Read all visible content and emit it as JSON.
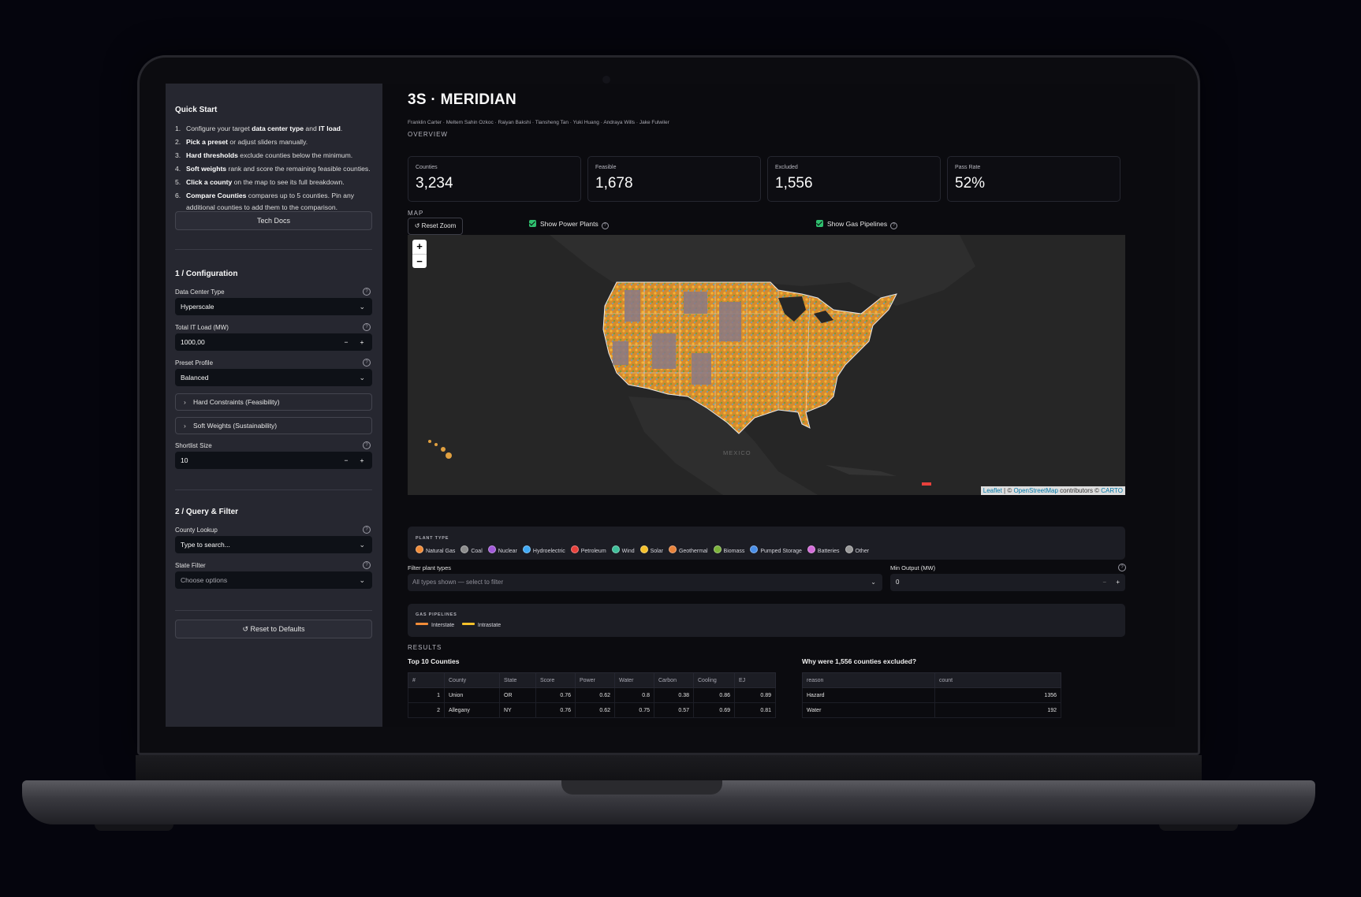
{
  "sidebar": {
    "quick_start": {
      "heading": "Quick Start",
      "steps": [
        {
          "n": "1.",
          "pre": "Configure your target ",
          "b1": "data center type",
          "mid": " and ",
          "b2": "IT load",
          "post": "."
        },
        {
          "n": "2.",
          "pre": "",
          "b1": "Pick a preset",
          "mid": " or adjust sliders manually.",
          "b2": "",
          "post": ""
        },
        {
          "n": "3.",
          "pre": "",
          "b1": "Hard thresholds",
          "mid": " exclude counties below the minimum.",
          "b2": "",
          "post": ""
        },
        {
          "n": "4.",
          "pre": "",
          "b1": "Soft weights",
          "mid": " rank and score the remaining feasible counties.",
          "b2": "",
          "post": ""
        },
        {
          "n": "5.",
          "pre": "",
          "b1": "Click a county",
          "mid": " on the map to see its full breakdown.",
          "b2": "",
          "post": ""
        },
        {
          "n": "6.",
          "pre": "",
          "b1": "Compare Counties",
          "mid": " compares up to 5 counties. Pin any additional counties to add them to the comparison.",
          "b2": "",
          "post": ""
        }
      ],
      "tech_docs": "Tech Docs"
    },
    "config": {
      "heading": "1 / Configuration",
      "dc_type_label": "Data Center Type",
      "dc_type_value": "Hyperscale",
      "it_load_label": "Total IT Load (MW)",
      "it_load_value": "1000,00",
      "preset_label": "Preset Profile",
      "preset_value": "Balanced",
      "hard_constraints": "Hard Constraints (Feasibility)",
      "soft_weights": "Soft Weights (Sustainability)",
      "shortlist_label": "Shortlist Size",
      "shortlist_value": "10"
    },
    "query": {
      "heading": "2 / Query & Filter",
      "county_label": "County Lookup",
      "county_placeholder": "Type to search...",
      "state_label": "State Filter",
      "state_placeholder": "Choose options"
    },
    "reset": "↺ Reset to Defaults",
    "minus": "−",
    "plus": "+",
    "chevron": "⌄",
    "help": "?",
    "arrow": "›"
  },
  "main": {
    "title": "3S · MERIDIAN",
    "authors": "Franklin Carter · Meltem Sahin Ozkoc · Raiyan Bakshi · Tiansheng Tan · Yuki Huang · Andraya Wills · Jake Fulwiler",
    "overview_label": "OVERVIEW",
    "cards": [
      {
        "label": "Counties",
        "value": "3,234"
      },
      {
        "label": "Feasible",
        "value": "1,678"
      },
      {
        "label": "Excluded",
        "value": "1,556"
      },
      {
        "label": "Pass Rate",
        "value": "52%"
      }
    ],
    "map_label": "MAP",
    "reset_zoom": "↺ Reset Zoom",
    "show_power_plants": "Show Power Plants",
    "show_gas_pipelines": "Show Gas Pipelines",
    "map": {
      "zoom_in": "+",
      "zoom_out": "−",
      "mexico": "MEXICO",
      "attr_leaflet": "Leaflet",
      "attr_sep": " | © ",
      "attr_osm": "OpenStreetMap",
      "attr_contrib": " contributors © ",
      "attr_carto": "CARTO"
    },
    "plant_legend": {
      "title": "PLANT TYPE",
      "items": [
        {
          "label": "Natural Gas",
          "color": "#f28c38"
        },
        {
          "label": "Coal",
          "color": "#8c8c8c"
        },
        {
          "label": "Nuclear",
          "color": "#a259d9"
        },
        {
          "label": "Hydroelectric",
          "color": "#3fa9f5"
        },
        {
          "label": "Petroleum",
          "color": "#e8413c"
        },
        {
          "label": "Wind",
          "color": "#3fbf9a"
        },
        {
          "label": "Solar",
          "color": "#f5c02a"
        },
        {
          "label": "Geothermal",
          "color": "#e8823a"
        },
        {
          "label": "Biomass",
          "color": "#7bb33a"
        },
        {
          "label": "Pumped Storage",
          "color": "#4a8fe8"
        },
        {
          "label": "Batteries",
          "color": "#d46bd9"
        },
        {
          "label": "Other",
          "color": "#9a9a9a"
        }
      ]
    },
    "filter_label": "Filter plant types",
    "filter_placeholder": "All types shown — select to filter",
    "min_output_label": "Min Output (MW)",
    "min_output_value": "0",
    "gas_legend": {
      "title": "GAS PIPELINES",
      "items": [
        {
          "label": "Interstate",
          "color": "#f28c38"
        },
        {
          "label": "Intrastate",
          "color": "#f5c02a"
        }
      ]
    },
    "results_label": "RESULTS",
    "top_title": "Top 10 Counties",
    "top_table": {
      "headers": [
        "#",
        "County",
        "State",
        "Score",
        "Power",
        "Water",
        "Carbon",
        "Cooling",
        "EJ"
      ],
      "rows": [
        [
          "1",
          "Union",
          "OR",
          "0.76",
          "0.62",
          "0.8",
          "0.38",
          "0.86",
          "0.89"
        ],
        [
          "2",
          "Allegany",
          "NY",
          "0.76",
          "0.62",
          "0.75",
          "0.57",
          "0.69",
          "0.81"
        ]
      ]
    },
    "excl_title": "Why were 1,556 counties excluded?",
    "excl_table": {
      "headers": [
        "reason",
        "count"
      ],
      "rows": [
        [
          "Hazard",
          "1356"
        ],
        [
          "Water",
          "192"
        ]
      ]
    }
  }
}
